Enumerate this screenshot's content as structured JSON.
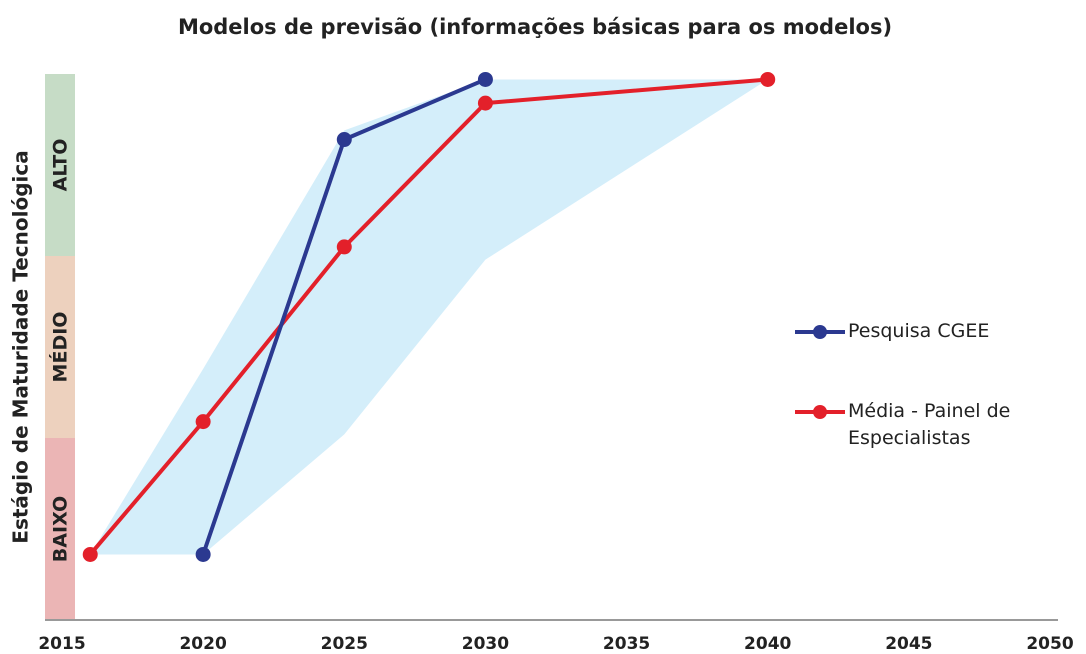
{
  "chart_data": {
    "type": "line",
    "title": "Modelos de previsão (informações básicas para os modelos)",
    "y_label": "Estágio de Maturidade Tecnológica",
    "xlim": [
      2015,
      2050
    ],
    "xticks": [
      2015,
      2020,
      2025,
      2030,
      2035,
      2040,
      2045,
      2050
    ],
    "ylim": [
      0,
      3
    ],
    "y_bands": [
      {
        "label": "BAIXO",
        "from": 0,
        "to": 1,
        "color": "#ebb5b5"
      },
      {
        "label": "MÉDIO",
        "from": 1,
        "to": 2,
        "color": "#edd1be"
      },
      {
        "label": "ALTO",
        "from": 2,
        "to": 3,
        "color": "#c6dcc6"
      }
    ],
    "range": {
      "x": [
        2016,
        2020,
        2025,
        2030,
        2040
      ],
      "upper": [
        0.36,
        1.38,
        2.69,
        2.97,
        2.97
      ],
      "lower": [
        0.36,
        0.36,
        1.02,
        1.98,
        2.97
      ],
      "color": "#d4eefa"
    },
    "series": [
      {
        "name": "Média - Painel de Especialistas",
        "color": "#e3202a",
        "x": [
          2016,
          2020,
          2025,
          2030,
          2040
        ],
        "values": [
          0.36,
          1.09,
          2.05,
          2.84,
          2.97
        ]
      },
      {
        "name": "Pesquisa CGEE",
        "color": "#2b3990",
        "x": [
          2020,
          2025,
          2030
        ],
        "values": [
          0.36,
          2.64,
          2.97
        ]
      }
    ],
    "legend_order": [
      1,
      0
    ]
  }
}
